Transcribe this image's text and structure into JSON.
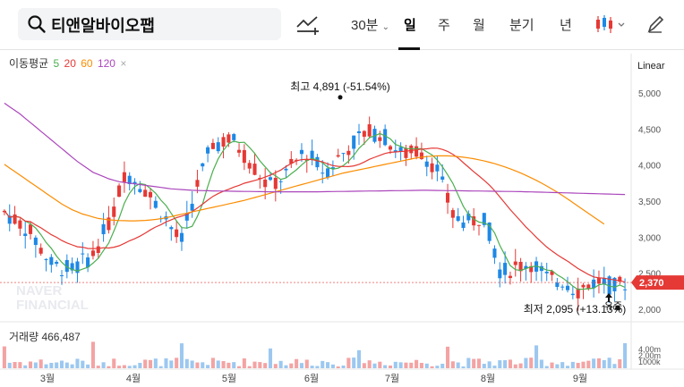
{
  "search": {
    "query": "티앤알바이오팹"
  },
  "timeframes": [
    {
      "label": "30분",
      "active": false
    },
    {
      "label": "일",
      "active": true
    },
    {
      "label": "주",
      "active": false
    },
    {
      "label": "월",
      "active": false
    },
    {
      "label": "분기",
      "active": false
    },
    {
      "label": "년",
      "active": false
    }
  ],
  "legend": {
    "title": "이동평균",
    "items": [
      {
        "label": "5",
        "color": "#4caf50"
      },
      {
        "label": "20",
        "color": "#e53935"
      },
      {
        "label": "60",
        "color": "#fb8c00"
      },
      {
        "label": "120",
        "color": "#ab47bc"
      }
    ],
    "close_symbol": "×"
  },
  "scale_label": "Linear",
  "volume_legend": "거래량 466,487",
  "watermark": "NAVER\nFINANCIAL",
  "colors": {
    "up": "#e53935",
    "down": "#1e88e5",
    "ma5": "#4caf50",
    "ma20": "#e53935",
    "ma60": "#fb8c00",
    "ma120": "#ab47bc",
    "accent": "#e53935"
  },
  "chart_data": {
    "type": "candlestick",
    "y_ticks": [
      "5,000",
      "4,500",
      "4,000",
      "3,500",
      "3,000",
      "2,500",
      "2,000"
    ],
    "ylim": [
      1850,
      5250
    ],
    "x_labels": [
      "3월",
      "4월",
      "5월",
      "6월",
      "7월",
      "8월",
      "9월"
    ],
    "volume_ticks": [
      "4,00m",
      "2,00m",
      "1000k"
    ],
    "current_price": "2,370",
    "annotations": {
      "high": {
        "text": "최고 4,891 (-51.54%)",
        "value": 4891
      },
      "low": {
        "text": "최저 2,095 (+13.13%)",
        "value": 2095
      },
      "event": {
        "text": "유증"
      }
    },
    "ma120": [
      4860,
      4810,
      4760,
      4710,
      4650,
      4590,
      4530,
      4470,
      4410,
      4350,
      4290,
      4230,
      4170,
      4110,
      4050,
      4000,
      3950,
      3900,
      3870,
      3840,
      3810,
      3790,
      3770,
      3760,
      3750,
      3740,
      3730,
      3720,
      3710,
      3700,
      3690,
      3680,
      3670,
      3665,
      3660,
      3655,
      3650,
      3648,
      3646,
      3644,
      3642,
      3640,
      3639,
      3638,
      3637,
      3636,
      3635,
      3634,
      3633,
      3632,
      3631,
      3630,
      3630,
      3630,
      3630,
      3630,
      3630,
      3630,
      3630,
      3630,
      3630,
      3631,
      3632,
      3633,
      3634,
      3635,
      3636,
      3637,
      3638,
      3639,
      3640,
      3641,
      3642,
      3643,
      3644,
      3645,
      3646,
      3647,
      3648,
      3649,
      3650,
      3650,
      3649,
      3648,
      3647,
      3646,
      3645,
      3644,
      3643,
      3642,
      3641,
      3640,
      3639,
      3638,
      3637,
      3636,
      3635,
      3634,
      3633,
      3632,
      3630,
      3628,
      3626,
      3624,
      3622,
      3620,
      3618,
      3616,
      3614,
      3612,
      3610,
      3608,
      3606,
      3604,
      3602,
      3600,
      3598,
      3596,
      3594,
      3592,
      3590
    ],
    "ma60": [
      4010,
      3960,
      3910,
      3860,
      3810,
      3760,
      3710,
      3660,
      3610,
      3560,
      3510,
      3460,
      3420,
      3380,
      3350,
      3320,
      3300,
      3280,
      3260,
      3250,
      3240,
      3235,
      3230,
      3228,
      3226,
      3226,
      3228,
      3232,
      3238,
      3246,
      3256,
      3270,
      3286,
      3302,
      3318,
      3334,
      3350,
      3366,
      3382,
      3398,
      3414,
      3430,
      3446,
      3462,
      3478,
      3494,
      3510,
      3530,
      3550,
      3570,
      3590,
      3610,
      3630,
      3650,
      3670,
      3690,
      3710,
      3730,
      3750,
      3770,
      3790,
      3810,
      3830,
      3850,
      3870,
      3890,
      3905,
      3920,
      3935,
      3950,
      3965,
      3980,
      3995,
      4010,
      4025,
      4040,
      4055,
      4070,
      4085,
      4100,
      4110,
      4118,
      4124,
      4128,
      4130,
      4128,
      4124,
      4118,
      4110,
      4100,
      4088,
      4074,
      4058,
      4040,
      4020,
      3998,
      3974,
      3948,
      3920,
      3890,
      3858,
      3824,
      3788,
      3750,
      3710,
      3668,
      3624,
      3578,
      3530,
      3480,
      3430,
      3380,
      3330,
      3280,
      3230,
      3180
    ]
  }
}
